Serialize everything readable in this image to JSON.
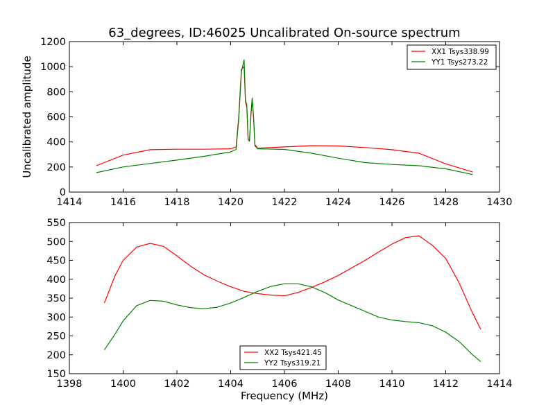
{
  "title": "63_degrees, ID:46025 Uncalibrated On-source spectrum",
  "xlabel_shared": "Frequency (MHz)",
  "colors": {
    "red": "#ff0000",
    "green": "#008000"
  },
  "chart_data": [
    {
      "type": "line",
      "title": "63_degrees, ID:46025 Uncalibrated On-source spectrum",
      "xlabel": "",
      "ylabel": "Uncalibrated amplitude",
      "xlim": [
        1414,
        1430
      ],
      "ylim": [
        0,
        1200
      ],
      "xticks": [
        1414,
        1416,
        1418,
        1420,
        1422,
        1424,
        1426,
        1428,
        1430
      ],
      "yticks": [
        0,
        200,
        400,
        600,
        800,
        1000,
        1200
      ],
      "legend_position": "top-right",
      "series": [
        {
          "name": "XX1 Tsys338.99",
          "color": "#ff0000",
          "x": [
            1415,
            1416,
            1417,
            1418,
            1419,
            1420,
            1420.2,
            1420.3,
            1420.4,
            1420.5,
            1420.55,
            1420.6,
            1420.65,
            1420.7,
            1420.75,
            1420.8,
            1420.85,
            1420.9,
            1421,
            1422,
            1423,
            1424,
            1425,
            1426,
            1427,
            1428,
            1429
          ],
          "values": [
            210,
            295,
            338,
            342,
            342,
            345,
            360,
            600,
            980,
            1000,
            720,
            680,
            420,
            415,
            600,
            740,
            600,
            380,
            350,
            360,
            370,
            368,
            355,
            338,
            310,
            225,
            160
          ]
        },
        {
          "name": "YY1 Tsys273.22",
          "color": "#008000",
          "x": [
            1415,
            1416,
            1417,
            1418,
            1419,
            1420,
            1420.2,
            1420.3,
            1420.4,
            1420.5,
            1420.55,
            1420.6,
            1420.65,
            1420.7,
            1420.75,
            1420.8,
            1420.85,
            1420.9,
            1421,
            1422,
            1423,
            1424,
            1425,
            1426,
            1427,
            1428,
            1429
          ],
          "values": [
            155,
            200,
            228,
            255,
            285,
            320,
            340,
            580,
            960,
            1055,
            730,
            700,
            420,
            405,
            620,
            750,
            610,
            370,
            345,
            340,
            310,
            270,
            235,
            220,
            210,
            185,
            140
          ]
        }
      ]
    },
    {
      "type": "line",
      "title": "",
      "xlabel": "Frequency (MHz)",
      "ylabel": "",
      "xlim": [
        1398,
        1414
      ],
      "ylim": [
        150,
        550
      ],
      "xticks": [
        1398,
        1400,
        1402,
        1404,
        1406,
        1408,
        1410,
        1412,
        1414
      ],
      "yticks": [
        150,
        200,
        250,
        300,
        350,
        400,
        450,
        500,
        550
      ],
      "legend_position": "lower-center",
      "series": [
        {
          "name": "XX2 Tsys421.45",
          "color": "#ff0000",
          "x": [
            1399.3,
            1399.7,
            1400,
            1400.5,
            1401,
            1401.5,
            1402,
            1402.5,
            1403,
            1403.5,
            1404,
            1404.5,
            1405,
            1405.5,
            1406,
            1406.5,
            1407,
            1407.5,
            1408,
            1408.5,
            1409,
            1409.5,
            1410,
            1410.5,
            1411,
            1411.5,
            1412,
            1412.5,
            1413,
            1413.3
          ],
          "values": [
            337,
            410,
            450,
            485,
            495,
            487,
            462,
            435,
            412,
            395,
            380,
            368,
            362,
            358,
            356,
            365,
            378,
            393,
            410,
            430,
            450,
            472,
            493,
            510,
            515,
            490,
            455,
            390,
            310,
            268
          ]
        },
        {
          "name": "YY2 Tsys319.21",
          "color": "#008000",
          "x": [
            1399.3,
            1399.7,
            1400,
            1400.5,
            1401,
            1401.5,
            1402,
            1402.5,
            1403,
            1403.5,
            1404,
            1404.5,
            1405,
            1405.5,
            1406,
            1406.5,
            1407,
            1407.5,
            1408,
            1408.5,
            1409,
            1409.5,
            1410,
            1410.5,
            1411,
            1411.5,
            1412,
            1412.5,
            1413,
            1413.3
          ],
          "values": [
            213,
            255,
            290,
            330,
            344,
            342,
            332,
            325,
            322,
            326,
            337,
            352,
            368,
            381,
            388,
            388,
            380,
            365,
            345,
            330,
            315,
            300,
            292,
            288,
            285,
            277,
            260,
            235,
            200,
            182
          ]
        }
      ]
    }
  ]
}
